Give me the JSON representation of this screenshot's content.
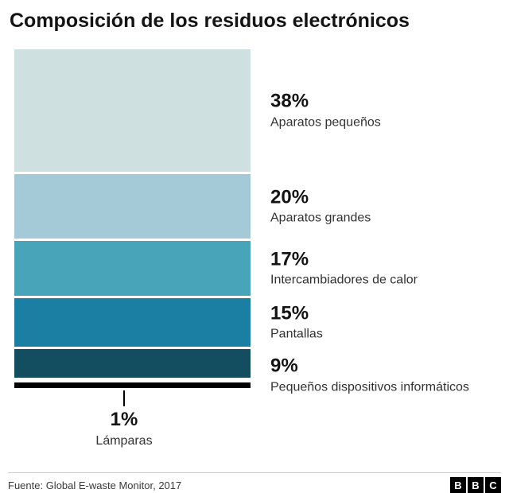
{
  "title": "Composición de los residuos electrónicos",
  "chart_data": {
    "type": "bar",
    "subtype": "stacked-percentage-single-bar",
    "title": "Composición de los residuos electrónicos",
    "unit": "%",
    "total": 100,
    "segments": [
      {
        "label": "Aparatos pequeños",
        "value": 38,
        "value_label": "38%",
        "color": "#cfe0e1"
      },
      {
        "label": "Aparatos grandes",
        "value": 20,
        "value_label": "20%",
        "color": "#a5cad7"
      },
      {
        "label": "Intercambiadores de calor",
        "value": 17,
        "value_label": "17%",
        "color": "#48a5b9"
      },
      {
        "label": "Pantallas",
        "value": 15,
        "value_label": "15%",
        "color": "#1a7fa2"
      },
      {
        "label": "Pequeños dispositivos informáticos",
        "value": 9,
        "value_label": "9%",
        "color": "#134d60"
      },
      {
        "label": "Lámparas",
        "value": 1,
        "value_label": "1%",
        "color": "#000000",
        "callout": true
      }
    ],
    "legend": "none",
    "source": "Fuente: Global E-waste Monitor, 2017"
  },
  "footer": {
    "source": "Fuente: Global E-waste Monitor, 2017",
    "logo_letters": [
      "B",
      "B",
      "C"
    ]
  }
}
